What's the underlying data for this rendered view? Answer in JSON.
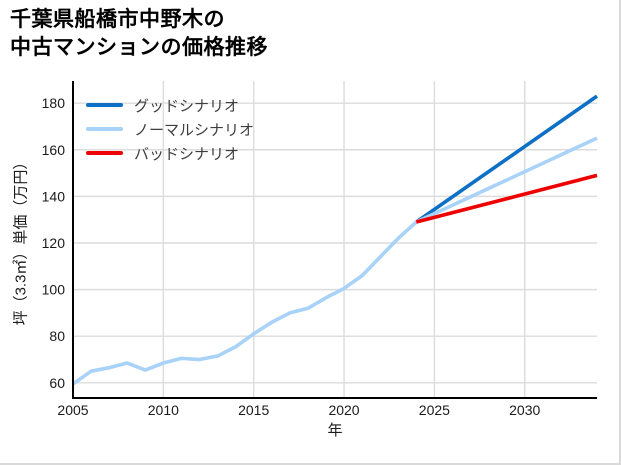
{
  "page": {
    "title_line1": "千葉県船橋市中野木の",
    "title_line2": "中古マンションの価格推移"
  },
  "chart_data": {
    "type": "line",
    "title": "千葉県船橋市中野木の中古マンションの価格推移",
    "xlabel": "年",
    "ylabel": "坪（3.3㎡）単価（万円）",
    "xlim": [
      2005,
      2034
    ],
    "ylim": [
      53.5,
      189.5
    ],
    "xticks": [
      2005,
      2010,
      2015,
      2020,
      2025,
      2030
    ],
    "yticks": [
      60,
      80,
      100,
      120,
      140,
      160,
      180
    ],
    "grid": true,
    "legend_position": "top-left",
    "axis_color": "#000000",
    "grid_color": "#dcdcdc",
    "tick_color": "#1a1a1a",
    "series": [
      {
        "id": "history",
        "legend": null,
        "color": "#a9d2f8",
        "points": [
          [
            2005,
            59.5
          ],
          [
            2006,
            65
          ],
          [
            2007,
            66.5
          ],
          [
            2008,
            68.5
          ],
          [
            2009,
            65.5
          ],
          [
            2010,
            68.5
          ],
          [
            2011,
            70.5
          ],
          [
            2012,
            70
          ],
          [
            2013,
            71.5
          ],
          [
            2014,
            75.5
          ],
          [
            2015,
            81
          ],
          [
            2016,
            86
          ],
          [
            2017,
            90
          ],
          [
            2018,
            92
          ],
          [
            2019,
            96.5
          ],
          [
            2020,
            100.5
          ],
          [
            2021,
            106
          ],
          [
            2022,
            114
          ],
          [
            2023,
            122
          ],
          [
            2024,
            129
          ]
        ]
      },
      {
        "id": "good",
        "legend": "グッドシナリオ",
        "color": "#0d6fc5",
        "points": [
          [
            2024,
            129
          ],
          [
            2034,
            183
          ]
        ]
      },
      {
        "id": "normal",
        "legend": "ノーマルシナリオ",
        "color": "#a9d2f8",
        "points": [
          [
            2024,
            129
          ],
          [
            2034,
            165
          ]
        ]
      },
      {
        "id": "bad",
        "legend": "バッドシナリオ",
        "color": "#ef0000",
        "points": [
          [
            2024,
            129
          ],
          [
            2034,
            149
          ]
        ]
      }
    ]
  }
}
